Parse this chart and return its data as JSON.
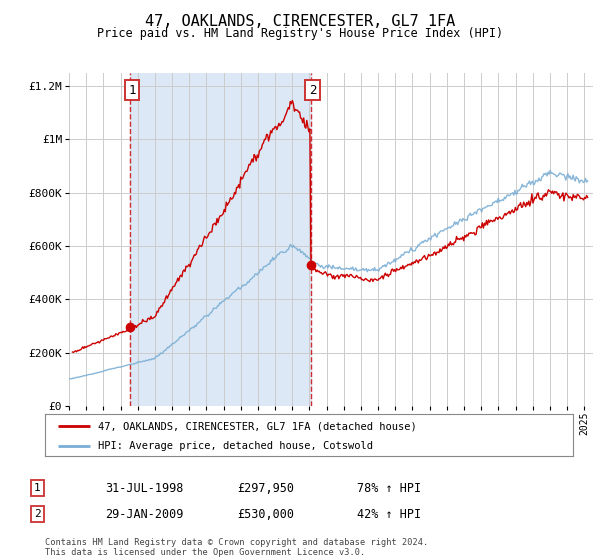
{
  "title": "47, OAKLANDS, CIRENCESTER, GL7 1FA",
  "subtitle": "Price paid vs. HM Land Registry's House Price Index (HPI)",
  "legend_label_red": "47, OAKLANDS, CIRENCESTER, GL7 1FA (detached house)",
  "legend_label_blue": "HPI: Average price, detached house, Cotswold",
  "annotation1_date": "31-JUL-1998",
  "annotation1_price": "£297,950",
  "annotation1_hpi": "78% ↑ HPI",
  "annotation1_year": 1998.58,
  "annotation1_value": 297950,
  "annotation2_date": "29-JAN-2009",
  "annotation2_price": "£530,000",
  "annotation2_hpi": "42% ↑ HPI",
  "annotation2_year": 2009.08,
  "annotation2_value": 530000,
  "footer": "Contains HM Land Registry data © Crown copyright and database right 2024.\nThis data is licensed under the Open Government Licence v3.0.",
  "ylim": [
    0,
    1250000
  ],
  "xlim_start": 1995,
  "xlim_end": 2025.5,
  "background_color": "#dce8f5",
  "plot_bg_color": "#ffffff",
  "red_color": "#cc0000",
  "blue_color": "#7aaed4",
  "grid_color": "#cccccc",
  "annotation_box_color": "#cc3333",
  "shade_color": "#dce8f5"
}
